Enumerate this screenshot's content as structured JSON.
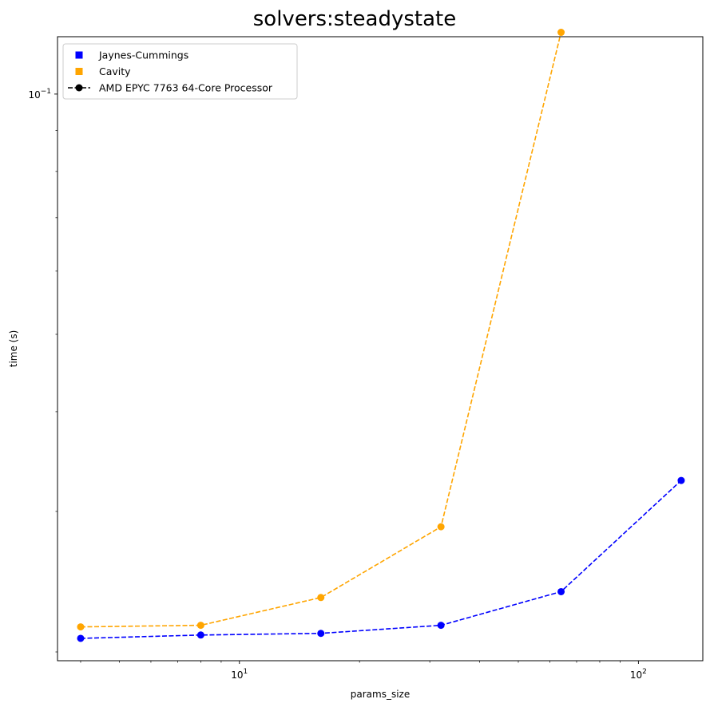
{
  "chart_data": {
    "type": "line",
    "title": "solvers:steadystate",
    "xlabel": "params_size",
    "ylabel": "time (s)",
    "xscale": "log",
    "yscale": "log",
    "xlim": [
      3.5,
      145
    ],
    "ylim": [
      0.0195,
      0.118
    ],
    "x_ticks": [
      {
        "value": 10,
        "base": "10",
        "exp": "1"
      },
      {
        "value": 100,
        "base": "10",
        "exp": "2"
      }
    ],
    "y_ticks": [
      {
        "value": 0.1,
        "base": "10",
        "exp": "−1"
      }
    ],
    "grid": false,
    "legend_position": "upper left",
    "series": [
      {
        "name": "Jaynes-Cummings",
        "color": "#0000ff",
        "marker": "square",
        "x": [
          4,
          8,
          16,
          32,
          64,
          128
        ],
        "y": [
          0.0208,
          0.021,
          0.0211,
          0.0216,
          0.0238,
          0.0328
        ]
      },
      {
        "name": "Cavity",
        "color": "#ffa500",
        "marker": "square",
        "x": [
          4,
          8,
          16,
          32,
          64
        ],
        "y": [
          0.0215,
          0.0216,
          0.0234,
          0.0287,
          0.1195
        ]
      }
    ],
    "legend_extra": [
      {
        "name": "AMD EPYC 7763 64-Core Processor",
        "color": "#000000",
        "marker": "circle",
        "line": "dashed"
      }
    ]
  }
}
